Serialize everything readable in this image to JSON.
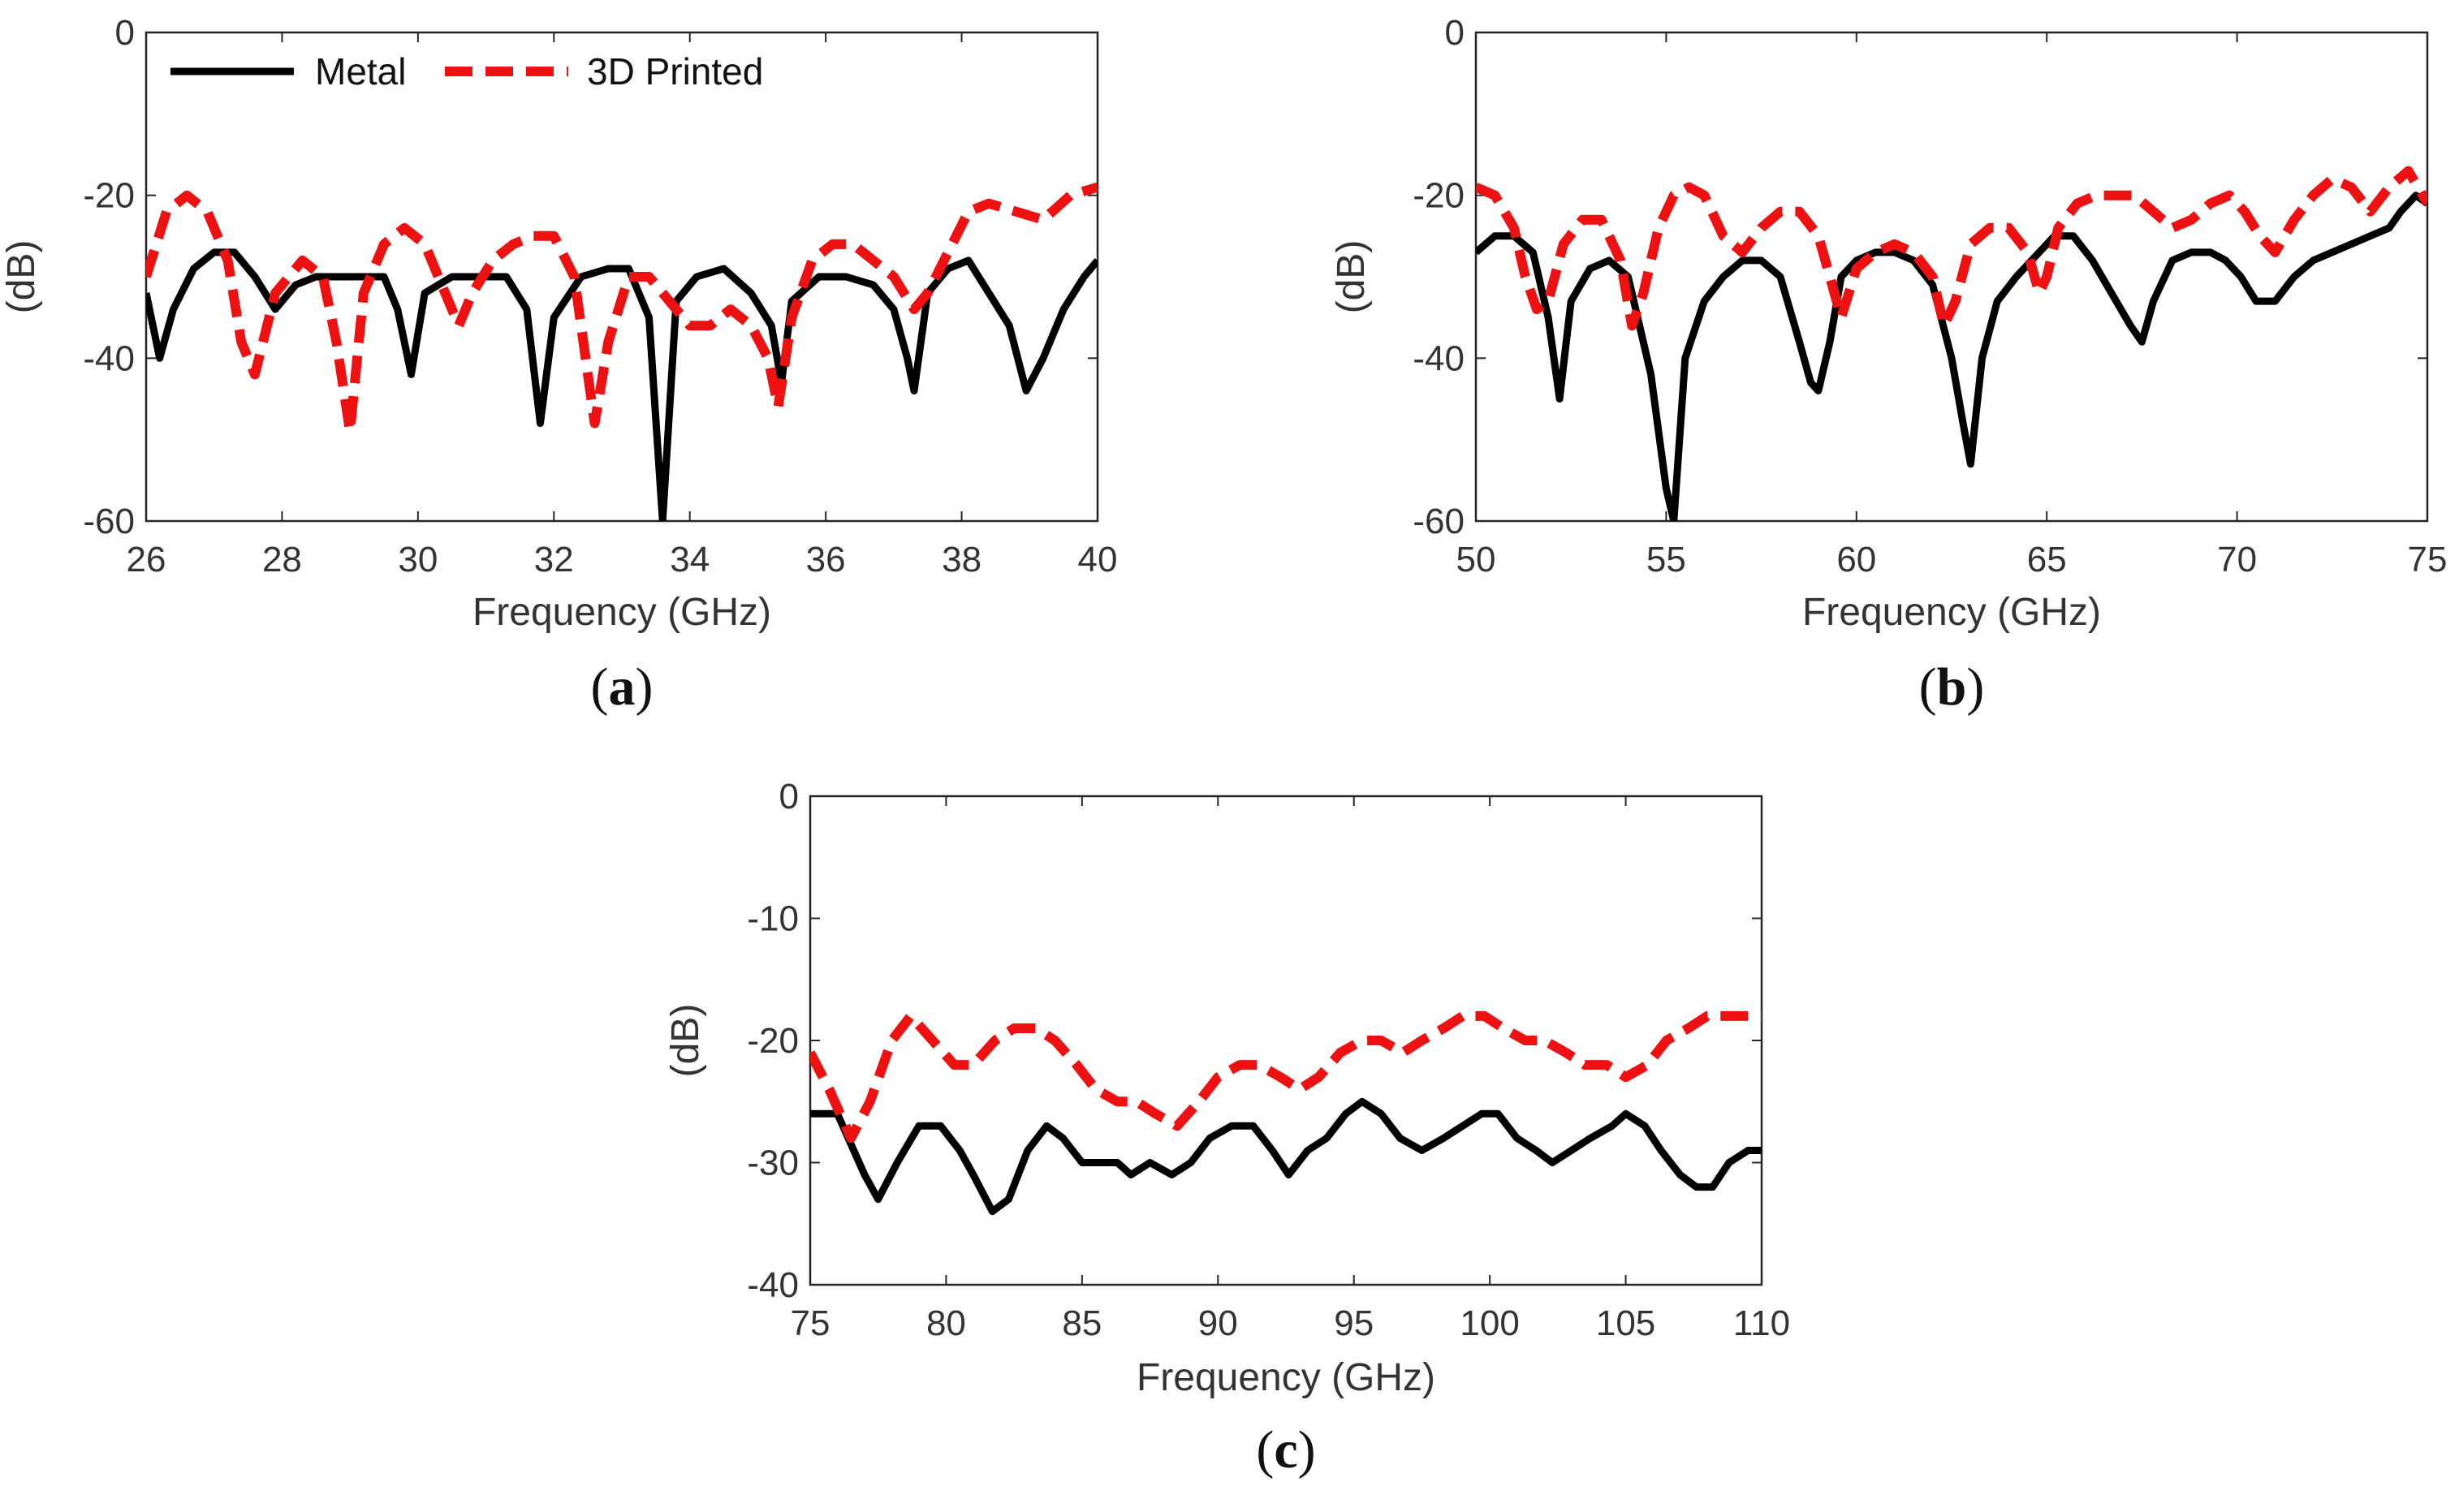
{
  "chart_data": [
    {
      "type": "line",
      "panel_label": "a",
      "xlabel": "Frequency (GHz)",
      "ylabel": "(dB)",
      "xlim": [
        26,
        40
      ],
      "ylim": [
        -60,
        0
      ],
      "xticks": [
        26,
        28,
        30,
        32,
        34,
        36,
        38,
        40
      ],
      "yticks": [
        -60,
        -40,
        -20,
        0
      ],
      "legend": {
        "position": "top-left",
        "entries": [
          "Metal",
          "3D Printed"
        ]
      },
      "series": [
        {
          "name": "Metal",
          "color": "#000000",
          "style": "solid",
          "x": [
            26.0,
            26.2,
            26.4,
            26.7,
            27.0,
            27.3,
            27.6,
            27.9,
            28.2,
            28.5,
            28.8,
            29.1,
            29.5,
            29.7,
            29.9,
            30.1,
            30.5,
            30.9,
            31.3,
            31.6,
            31.8,
            32.0,
            32.4,
            32.8,
            33.1,
            33.4,
            33.6,
            33.8,
            34.1,
            34.5,
            34.9,
            35.2,
            35.35,
            35.5,
            35.9,
            36.3,
            36.7,
            37.0,
            37.2,
            37.3,
            37.5,
            37.8,
            38.1,
            38.4,
            38.7,
            38.95,
            39.2,
            39.5,
            39.8,
            40.0
          ],
          "y": [
            -32,
            -40,
            -34,
            -29,
            -27,
            -27,
            -30,
            -34,
            -31,
            -30,
            -30,
            -30,
            -30,
            -34,
            -42,
            -32,
            -30,
            -30,
            -30,
            -34,
            -48,
            -35,
            -30,
            -29,
            -29,
            -35,
            -60,
            -33,
            -30,
            -29,
            -32,
            -36,
            -43,
            -33,
            -30,
            -30,
            -31,
            -34,
            -40,
            -44,
            -32,
            -29,
            -28,
            -32,
            -36,
            -44,
            -40,
            -34,
            -30,
            -28
          ]
        },
        {
          "name": "3D Printed",
          "color": "#ee1111",
          "style": "dashed",
          "x": [
            26.0,
            26.3,
            26.6,
            26.9,
            27.2,
            27.4,
            27.6,
            27.9,
            28.3,
            28.6,
            28.8,
            29.0,
            29.2,
            29.5,
            29.8,
            30.1,
            30.4,
            30.6,
            30.8,
            31.1,
            31.4,
            31.7,
            32.0,
            32.3,
            32.5,
            32.6,
            32.8,
            33.1,
            33.4,
            33.7,
            34.0,
            34.3,
            34.6,
            34.9,
            35.15,
            35.3,
            35.5,
            35.8,
            36.1,
            36.4,
            36.7,
            37.0,
            37.3,
            37.5,
            37.8,
            38.1,
            38.4,
            38.8,
            39.2,
            39.6,
            40.0
          ],
          "y": [
            -30,
            -22,
            -20,
            -22,
            -28,
            -38,
            -42,
            -32,
            -28,
            -30,
            -38,
            -49,
            -32,
            -26,
            -24,
            -26,
            -32,
            -36,
            -32,
            -28,
            -26,
            -25,
            -25,
            -30,
            -42,
            -48,
            -38,
            -30,
            -30,
            -33,
            -36,
            -36,
            -34,
            -36,
            -40,
            -46,
            -35,
            -28,
            -26,
            -26,
            -28,
            -30,
            -34,
            -32,
            -27,
            -22,
            -21,
            -22,
            -23,
            -20,
            -19
          ]
        }
      ]
    },
    {
      "type": "line",
      "panel_label": "b",
      "xlabel": "Frequency (GHz)",
      "ylabel": "(dB)",
      "xlim": [
        50,
        75
      ],
      "ylim": [
        -60,
        0
      ],
      "xticks": [
        50,
        55,
        60,
        65,
        70,
        75
      ],
      "yticks": [
        -60,
        -40,
        -20,
        0
      ],
      "series": [
        {
          "name": "Metal",
          "color": "#000000",
          "style": "solid",
          "x": [
            50.0,
            50.5,
            51.0,
            51.5,
            51.9,
            52.2,
            52.5,
            53.0,
            53.5,
            54.0,
            54.6,
            55.0,
            55.2,
            55.5,
            56.0,
            56.5,
            57.0,
            57.5,
            58.0,
            58.5,
            58.8,
            59.0,
            59.3,
            59.6,
            60.0,
            60.5,
            61.0,
            61.5,
            62.0,
            62.5,
            62.8,
            63.0,
            63.3,
            63.7,
            64.2,
            64.8,
            65.2,
            65.7,
            66.2,
            66.7,
            67.2,
            67.5,
            67.8,
            68.3,
            68.8,
            69.3,
            69.7,
            70.1,
            70.5,
            71.0,
            71.5,
            72.0,
            72.5,
            73.0,
            73.5,
            74.0,
            74.3,
            74.7,
            75.0
          ],
          "y": [
            -27,
            -25,
            -25,
            -27,
            -35,
            -45,
            -33,
            -29,
            -28,
            -30,
            -42,
            -56,
            -60,
            -40,
            -33,
            -30,
            -28,
            -28,
            -30,
            -38,
            -43,
            -44,
            -38,
            -30,
            -28,
            -27,
            -27,
            -28,
            -31,
            -40,
            -48,
            -53,
            -40,
            -33,
            -30,
            -27,
            -25,
            -25,
            -28,
            -32,
            -36,
            -38,
            -33,
            -28,
            -27,
            -27,
            -28,
            -30,
            -33,
            -33,
            -30,
            -28,
            -27,
            -26,
            -25,
            -24,
            -22,
            -20,
            -21
          ]
        },
        {
          "name": "3D Printed",
          "color": "#ee1111",
          "style": "dashed",
          "x": [
            50.0,
            50.5,
            51.0,
            51.3,
            51.6,
            51.9,
            52.3,
            52.8,
            53.3,
            53.8,
            54.1,
            54.4,
            54.8,
            55.2,
            55.6,
            56.0,
            56.5,
            57.0,
            57.5,
            58.0,
            58.5,
            59.0,
            59.3,
            59.6,
            60.0,
            60.5,
            61.0,
            61.5,
            62.0,
            62.3,
            62.6,
            63.0,
            63.5,
            64.0,
            64.5,
            64.8,
            65.0,
            65.3,
            65.8,
            66.3,
            66.8,
            67.3,
            67.8,
            68.3,
            68.8,
            69.3,
            69.8,
            70.2,
            70.6,
            71.0,
            71.5,
            72.0,
            72.5,
            73.0,
            73.5,
            74.0,
            74.5,
            75.0
          ],
          "y": [
            -19,
            -20,
            -24,
            -30,
            -34,
            -33,
            -26,
            -23,
            -23,
            -28,
            -36,
            -32,
            -24,
            -20,
            -19,
            -20,
            -25,
            -27,
            -24,
            -22,
            -22,
            -25,
            -30,
            -35,
            -29,
            -27,
            -26,
            -27,
            -30,
            -36,
            -33,
            -26,
            -24,
            -24,
            -27,
            -32,
            -30,
            -24,
            -21,
            -20,
            -20,
            -20,
            -22,
            -24,
            -23,
            -21,
            -20,
            -22,
            -25,
            -27,
            -23,
            -20,
            -18,
            -19,
            -22,
            -19,
            -17,
            -21
          ]
        }
      ]
    },
    {
      "type": "line",
      "panel_label": "c",
      "xlabel": "Frequency (GHz)",
      "ylabel": "(dB)",
      "xlim": [
        75,
        110
      ],
      "ylim": [
        -40,
        0
      ],
      "xticks": [
        75,
        80,
        85,
        90,
        95,
        100,
        105,
        110
      ],
      "yticks": [
        -40,
        -30,
        -20,
        -10,
        0
      ],
      "series": [
        {
          "name": "Metal",
          "color": "#000000",
          "style": "solid",
          "x": [
            75.0,
            76.0,
            77.0,
            77.5,
            78.2,
            79.0,
            79.8,
            80.5,
            81.0,
            81.7,
            82.3,
            83.0,
            83.7,
            84.3,
            85.0,
            85.5,
            86.3,
            86.8,
            87.5,
            88.3,
            89.0,
            89.7,
            90.5,
            91.3,
            92.0,
            92.6,
            93.3,
            94.0,
            94.7,
            95.3,
            96.0,
            96.7,
            97.5,
            98.3,
            99.0,
            99.7,
            100.3,
            101.0,
            101.7,
            102.3,
            103.0,
            103.7,
            104.5,
            105.0,
            105.7,
            106.3,
            107.0,
            107.6,
            108.2,
            108.8,
            109.5,
            110.0
          ],
          "y": [
            -26,
            -26,
            -31,
            -33,
            -30,
            -27,
            -27,
            -29,
            -31,
            -34,
            -33,
            -29,
            -27,
            -28,
            -30,
            -30,
            -30,
            -31,
            -30,
            -31,
            -30,
            -28,
            -27,
            -27,
            -29,
            -31,
            -29,
            -28,
            -26,
            -25,
            -26,
            -28,
            -29,
            -28,
            -27,
            -26,
            -26,
            -28,
            -29,
            -30,
            -29,
            -28,
            -27,
            -26,
            -27,
            -29,
            -31,
            -32,
            -32,
            -30,
            -29,
            -29
          ]
        },
        {
          "name": "3D Printed",
          "color": "#ee1111",
          "style": "dashed",
          "x": [
            75.0,
            75.7,
            76.5,
            77.2,
            78.0,
            78.7,
            79.5,
            80.3,
            81.0,
            81.8,
            82.5,
            83.3,
            84.0,
            84.8,
            85.5,
            86.3,
            87.0,
            87.7,
            88.5,
            89.3,
            90.0,
            90.8,
            91.5,
            92.3,
            93.0,
            93.7,
            94.5,
            95.3,
            96.0,
            96.8,
            97.5,
            98.3,
            99.0,
            99.8,
            100.5,
            101.3,
            102.0,
            102.8,
            103.5,
            104.3,
            105.0,
            105.8,
            106.5,
            107.3,
            108.0,
            108.8,
            109.5,
            110.0
          ],
          "y": [
            -21,
            -24,
            -28,
            -25,
            -20,
            -18,
            -20,
            -22,
            -22,
            -20,
            -19,
            -19,
            -20,
            -22,
            -24,
            -25,
            -25,
            -26,
            -27,
            -25,
            -23,
            -22,
            -22,
            -23,
            -24,
            -23,
            -21,
            -20,
            -20,
            -21,
            -20,
            -19,
            -18,
            -18,
            -19,
            -20,
            -20,
            -21,
            -22,
            -22,
            -23,
            -22,
            -20,
            -19,
            -18,
            -18,
            -18,
            -18
          ]
        }
      ]
    }
  ]
}
